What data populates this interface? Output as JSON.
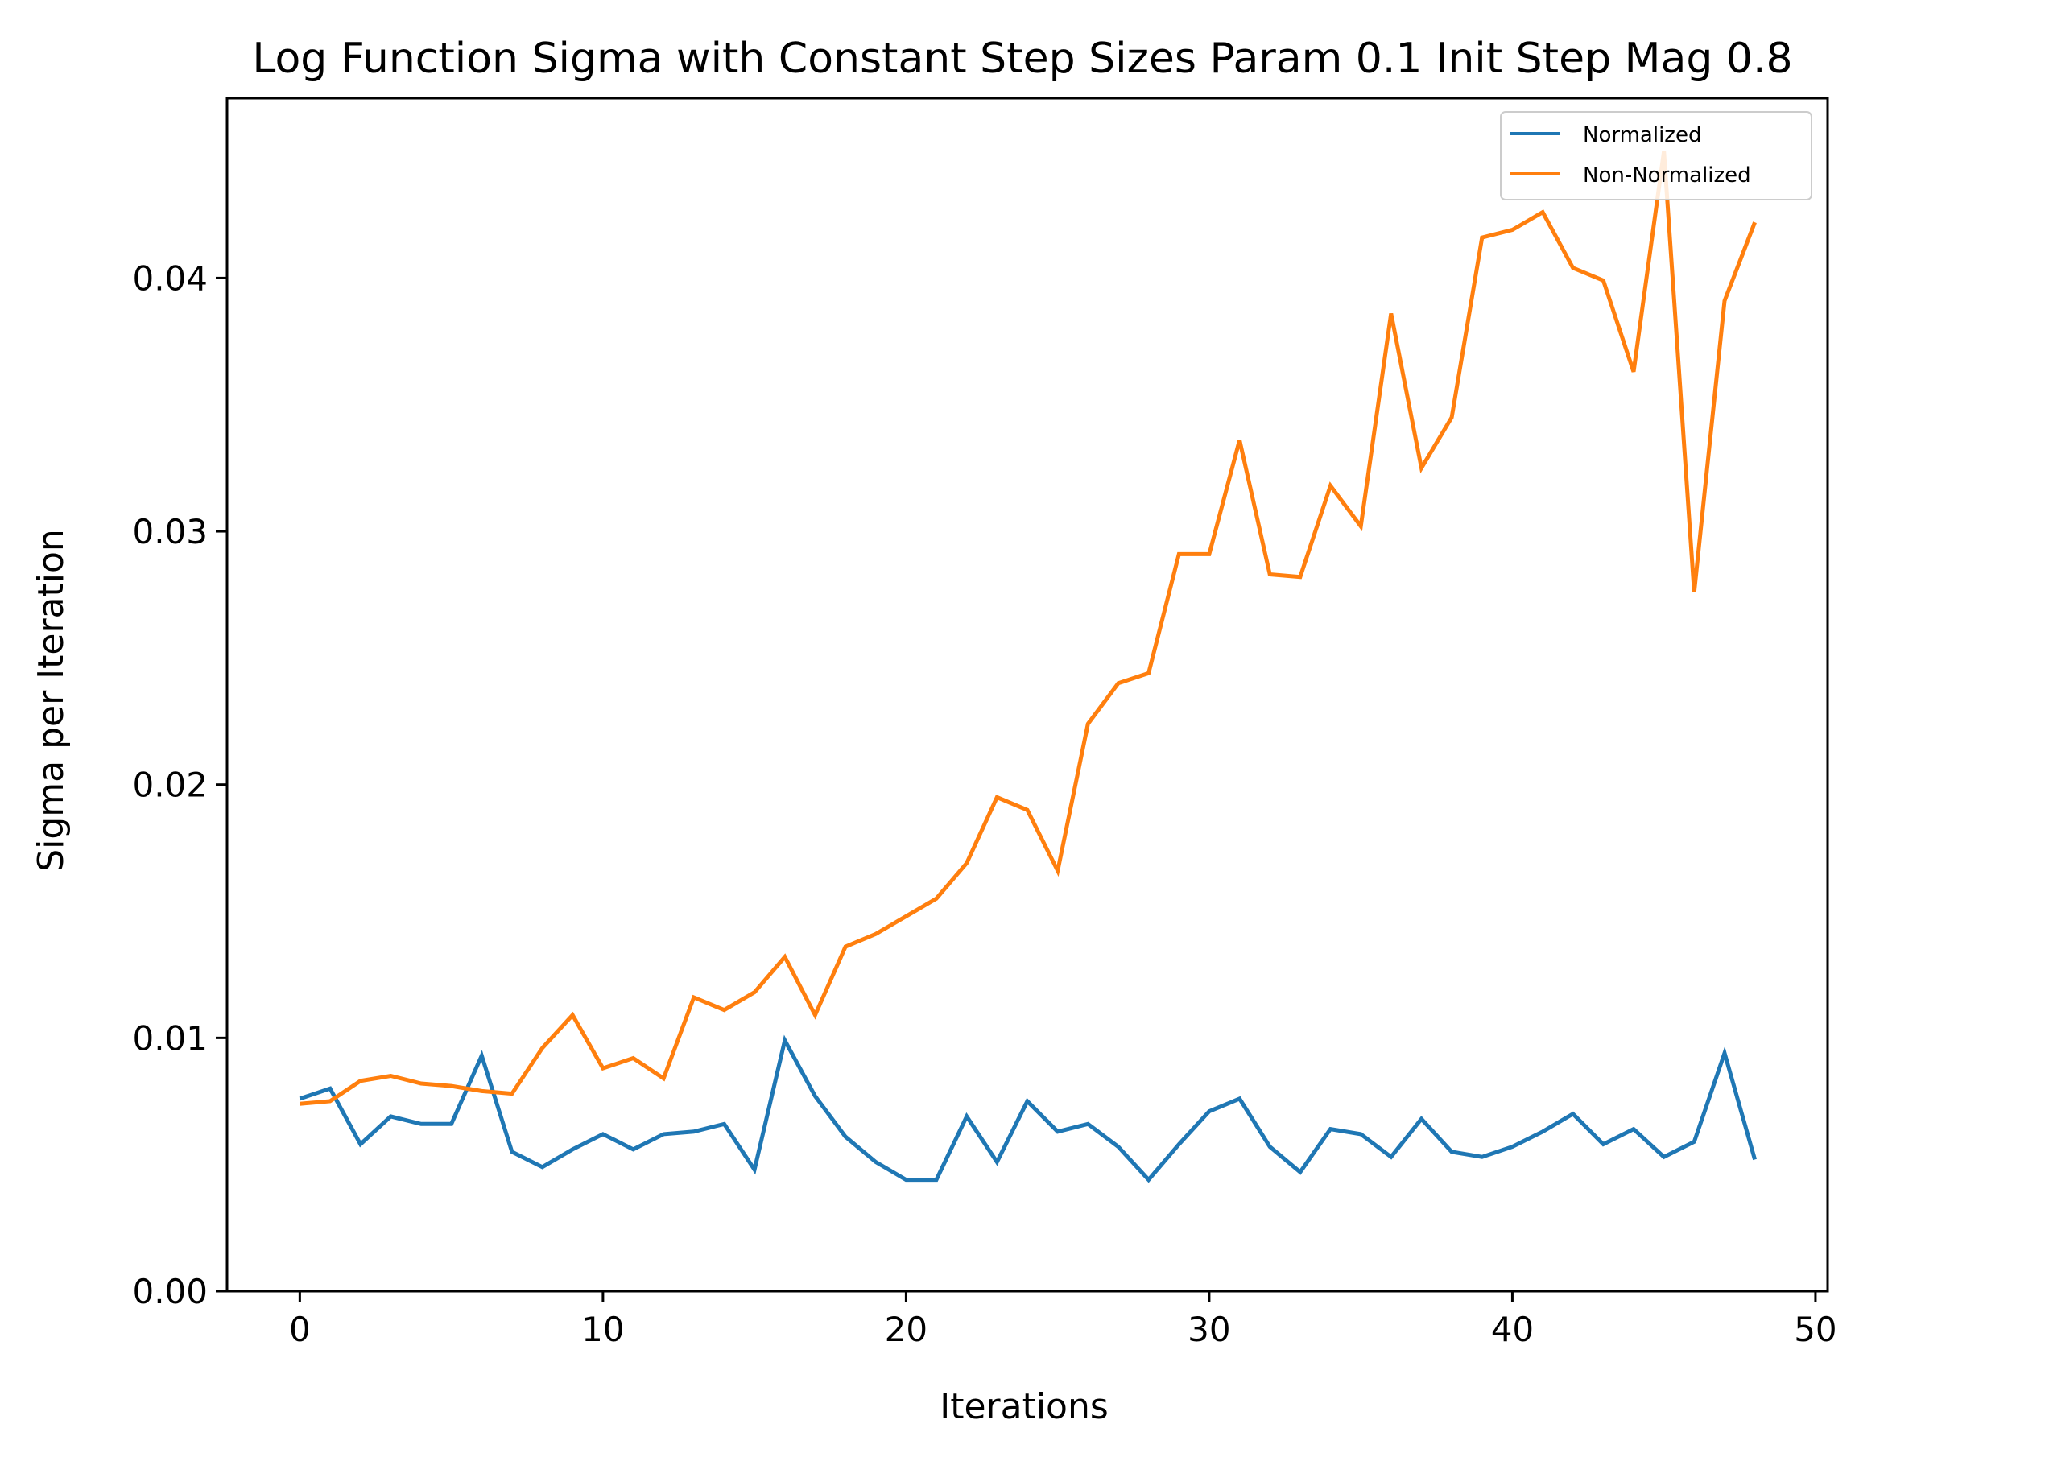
{
  "chart_data": {
    "type": "line",
    "title": "Log Function Sigma with Constant Step Sizes Param 0.1 Init Step Mag 0.8",
    "xlabel": "Iterations",
    "ylabel": "Sigma per Iteration",
    "xlim": [
      -2.4,
      50.4
    ],
    "ylim": [
      0.0,
      0.0471
    ],
    "xticks": [
      0,
      10,
      20,
      30,
      40,
      50
    ],
    "xtick_labels": [
      "0",
      "10",
      "20",
      "30",
      "40",
      "50"
    ],
    "yticks": [
      0.0,
      0.01,
      0.02,
      0.03,
      0.04
    ],
    "ytick_labels": [
      "0.00",
      "0.01",
      "0.02",
      "0.03",
      "0.04"
    ],
    "grid": false,
    "legend_position": "top-right",
    "x": [
      0,
      1,
      2,
      3,
      4,
      5,
      6,
      7,
      8,
      9,
      10,
      11,
      12,
      13,
      14,
      15,
      16,
      17,
      18,
      19,
      20,
      21,
      22,
      23,
      24,
      25,
      26,
      27,
      28,
      29,
      30,
      31,
      32,
      33,
      34,
      35,
      36,
      37,
      38,
      39,
      40,
      41,
      42,
      43,
      44,
      45,
      46,
      47,
      48
    ],
    "series": [
      {
        "name": "Normalized",
        "color": "#1f77b4",
        "values": [
          0.0076,
          0.008,
          0.0058,
          0.0069,
          0.0066,
          0.0066,
          0.0093,
          0.0055,
          0.0049,
          0.0056,
          0.0062,
          0.0056,
          0.0062,
          0.0063,
          0.0066,
          0.0048,
          0.0099,
          0.0077,
          0.0061,
          0.0051,
          0.0044,
          0.0044,
          0.0069,
          0.0051,
          0.0075,
          0.0063,
          0.0066,
          0.0057,
          0.0044,
          0.0058,
          0.0071,
          0.0076,
          0.0057,
          0.0047,
          0.0064,
          0.0062,
          0.0053,
          0.0068,
          0.0055,
          0.0053,
          0.0057,
          0.0063,
          0.007,
          0.0058,
          0.0064,
          0.0053,
          0.0059,
          0.0094,
          0.0052
        ]
      },
      {
        "name": "Non-Normalized",
        "color": "#ff7f0e",
        "values": [
          0.0074,
          0.0075,
          0.0083,
          0.0085,
          0.0082,
          0.0081,
          0.0079,
          0.0078,
          0.0096,
          0.0109,
          0.0088,
          0.0092,
          0.0084,
          0.0116,
          0.0111,
          0.0118,
          0.0132,
          0.0109,
          0.0136,
          0.0141,
          0.0148,
          0.0155,
          0.0169,
          0.0195,
          0.019,
          0.0166,
          0.0224,
          0.024,
          0.0244,
          0.0291,
          0.0291,
          0.0336,
          0.0283,
          0.0282,
          0.0318,
          0.0302,
          0.0386,
          0.0325,
          0.0345,
          0.0416,
          0.0419,
          0.0426,
          0.0404,
          0.0399,
          0.0363,
          0.045,
          0.0276,
          0.0391,
          0.0422
        ]
      }
    ]
  }
}
